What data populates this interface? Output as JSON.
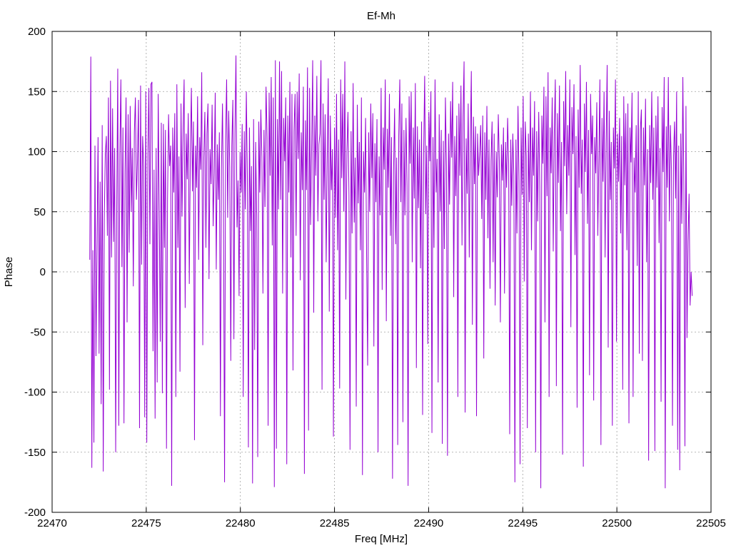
{
  "chart_data": {
    "type": "line",
    "title": "Ef-Mh",
    "xlabel": "Freq [MHz]",
    "ylabel": "Phase",
    "xlim": [
      22470,
      22505
    ],
    "ylim": [
      -200,
      200
    ],
    "xticks": [
      22470,
      22475,
      22480,
      22485,
      22490,
      22495,
      22500,
      22505
    ],
    "yticks": [
      -200,
      -150,
      -100,
      -50,
      0,
      50,
      100,
      150,
      200
    ],
    "grid": true,
    "legend": "none",
    "series": [
      {
        "color": "#9400d3",
        "x_start": 22472.0,
        "x_end": 22504.0,
        "values": [
          10,
          179,
          -163,
          18,
          -142,
          105,
          -70,
          22,
          112,
          -68,
          75,
          -110,
          122,
          -166,
          45,
          98,
          113,
          30,
          145,
          -98,
          159,
          12,
          136,
          25,
          103,
          -150,
          51,
          169,
          -128,
          98,
          160,
          4,
          120,
          -126,
          83,
          145,
          -42,
          131,
          16,
          138,
          50,
          103,
          -12,
          116,
          145,
          60,
          92,
          143,
          -130,
          155,
          6,
          113,
          88,
          -121,
          150,
          -142,
          98,
          153,
          23,
          156,
          158,
          -66,
          85,
          -122,
          103,
          -92,
          148,
          52,
          -58,
          124,
          -101,
          123,
          20,
          118,
          -147,
          60,
          131,
          88,
          105,
          -178,
          120,
          66,
          132,
          -104,
          156,
          20,
          96,
          -83,
          140,
          46,
          118,
          160,
          -30,
          115,
          77,
          132,
          -10,
          98,
          153,
          67,
          125,
          -140,
          105,
          70,
          146,
          10,
          112,
          85,
          166,
          -61,
          95,
          133,
          20,
          115,
          140,
          -6,
          102,
          73,
          139,
          38,
          82,
          149,
          2,
          106,
          60,
          116,
          -120,
          85,
          140,
          50,
          -175,
          110,
          160,
          45,
          134,
          87,
          -74,
          105,
          143,
          -56,
          115,
          180,
          37,
          76,
          -20,
          100,
          66,
          123,
          -104,
          117,
          52,
          150,
          78,
          -146,
          120,
          34,
          88,
          -176,
          127,
          -65,
          108,
          47,
          -154,
          125,
          66,
          135,
          96,
          -18,
          118,
          54,
          154,
          112,
          -128,
          149,
          80,
          162,
          22,
          145,
          -179,
          176,
          -147,
          127,
          52,
          175,
          60,
          167,
          -18,
          128,
          92,
          145,
          -160,
          130,
          66,
          158,
          12,
          148,
          -82,
          117,
          148,
          30,
          150,
          94,
          165,
          -7,
          116,
          68,
          154,
          -168,
          126,
          68,
          170,
          -132,
          153,
          39,
          104,
          176,
          -34,
          130,
          80,
          163,
          42,
          106,
          115,
          176,
          -98,
          140,
          60,
          131,
          8,
          92,
          161,
          -33,
          130,
          68,
          102,
          -137,
          120,
          45,
          148,
          18,
          110,
          -97,
          160,
          78,
          148,
          50,
          175,
          -23,
          100,
          133,
          64,
          -148,
          117,
          32,
          157,
          41,
          95,
          -112,
          139,
          57,
          108,
          18,
          145,
          -169,
          100,
          66,
          128,
          12,
          -78,
          116,
          50,
          140,
          78,
          132,
          -62,
          107,
          58,
          127,
          -150,
          96,
          47,
          153,
          -15,
          120,
          85,
          160,
          -41,
          119,
          70,
          148,
          30,
          112,
          -172,
          84,
          136,
          23,
          95,
          -144,
          113,
          160,
          58,
          140,
          -125,
          118,
          47,
          128,
          72,
          -178,
          146,
          90,
          150,
          8,
          120,
          61,
          157,
          -80,
          121,
          53,
          110,
          3,
          125,
          -119,
          98,
          163,
          48,
          105,
          -60,
          133,
          92,
          150,
          -134,
          112,
          20,
          160,
          66,
          94,
          -92,
          131,
          50,
          118,
          -143,
          109,
          19,
          145,
          88,
          -153,
          115,
          56,
          142,
          95,
          158,
          -21,
          113,
          63,
          130,
          -104,
          140,
          80,
          155,
          22,
          129,
          175,
          -117,
          111,
          65,
          140,
          12,
          108,
          167,
          -44,
          129,
          73,
          121,
          -120,
          115,
          80,
          98,
          122,
          44,
          130,
          -72,
          116,
          60,
          138,
          28,
          110,
          -14,
          92,
          125,
          8,
          115,
          -28,
          100,
          62,
          131,
          92,
          -42,
          106,
          76,
          120,
          -18,
          108,
          70,
          128,
          90,
          -135,
          110,
          55,
          115,
          80,
          -175,
          110,
          32,
          138,
          76,
          -160,
          120,
          64,
          146,
          -8,
          125,
          96,
          -130,
          115,
          58,
          150,
          18,
          120,
          80,
          142,
          -150,
          117,
          42,
          133,
          70,
          -180,
          130,
          90,
          154,
          -42,
          146,
          63,
          166,
          -104,
          120,
          82,
          145,
          17,
          116,
          160,
          -95,
          132,
          74,
          155,
          34,
          108,
          -152,
          142,
          88,
          167,
          48,
          122,
          80,
          160,
          -46,
          137,
          98,
          156,
          14,
          113,
          -113,
          135,
          70,
          172,
          65,
          110,
          -162,
          140,
          83,
          158,
          40,
          118,
          -86,
          148,
          98,
          130,
          -107,
          112,
          82,
          141,
          30,
          96,
          160,
          -144,
          128,
          75,
          150,
          12,
          108,
          172,
          -63,
          134,
          60,
          108,
          -128,
          120,
          86,
          160,
          -58,
          115,
          75,
          128,
          32,
          113,
          -98,
          146,
          72,
          132,
          18,
          140,
          -126,
          120,
          91,
          149,
          -104,
          95,
          66,
          122,
          5,
          150,
          -68,
          118,
          135,
          -74,
          120,
          72,
          144,
          8,
          102,
          -157,
          122,
          74,
          150,
          60,
          120,
          -149,
          130,
          70,
          146,
          24,
          103,
          -108,
          137,
          83,
          162,
          -180,
          121,
          70,
          162,
          42,
          122,
          85,
          -128,
          96,
          125,
          61,
          150,
          -148,
          105,
          -165,
          115,
          40,
          162,
          65,
          -145,
          138,
          -55,
          25,
          65,
          -28,
          0,
          -20
        ]
      }
    ]
  }
}
